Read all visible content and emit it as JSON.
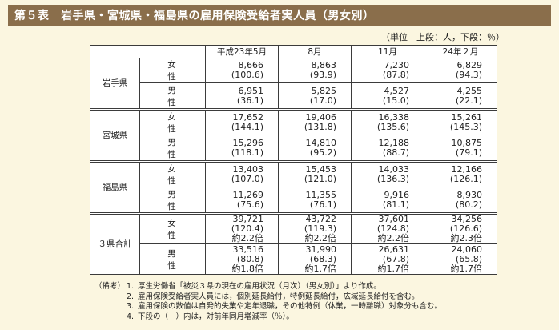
{
  "title": "第５表　岩手県・宮城県・福島県の雇用保険受給者実人員（男女別）",
  "unit_note": "（単位　上段：人，下段：％）",
  "columns": [
    "平成23年5月",
    "8月",
    "11月",
    "24年２月"
  ],
  "rows": [
    {
      "pref": "岩手県",
      "entries": [
        {
          "sex": "女　性",
          "cells": [
            [
              "8,666",
              "(100.6)"
            ],
            [
              "8,863",
              "(93.9)"
            ],
            [
              "7,230",
              "(87.8)"
            ],
            [
              "6,829",
              "(94.3)"
            ]
          ]
        },
        {
          "sex": "男　性",
          "cells": [
            [
              "6,951",
              "(36.1)"
            ],
            [
              "5,825",
              "(17.0)"
            ],
            [
              "4,527",
              "(15.0)"
            ],
            [
              "4,255",
              "(22.1)"
            ]
          ]
        }
      ]
    },
    {
      "pref": "宮城県",
      "entries": [
        {
          "sex": "女　性",
          "cells": [
            [
              "17,652",
              "(144.1)"
            ],
            [
              "19,406",
              "(131.8)"
            ],
            [
              "16,338",
              "(135.6)"
            ],
            [
              "15,261",
              "(145.3)"
            ]
          ]
        },
        {
          "sex": "男　性",
          "cells": [
            [
              "15,296",
              "(118.1)"
            ],
            [
              "14,810",
              "(95.2)"
            ],
            [
              "12,188",
              "(88.7)"
            ],
            [
              "10,875",
              "(79.1)"
            ]
          ]
        }
      ]
    },
    {
      "pref": "福島県",
      "entries": [
        {
          "sex": "女　性",
          "cells": [
            [
              "13,403",
              "(107.0)"
            ],
            [
              "15,453",
              "(121.0)"
            ],
            [
              "14,033",
              "(136.3)"
            ],
            [
              "12,166",
              "(126.1)"
            ]
          ]
        },
        {
          "sex": "男　性",
          "cells": [
            [
              "11,269",
              "(75.6)"
            ],
            [
              "11,355",
              "(76.1)"
            ],
            [
              "9,916",
              "(81.1)"
            ],
            [
              "8,930",
              "(80.2)"
            ]
          ]
        }
      ]
    },
    {
      "pref": "３県合計",
      "entries": [
        {
          "sex": "女　性",
          "cells": [
            [
              "39,721",
              "(120.4)",
              "約2.2倍"
            ],
            [
              "43,722",
              "(119.3)",
              "約2.2倍"
            ],
            [
              "37,601",
              "(124.8)",
              "約2.2倍"
            ],
            [
              "34,256",
              "(126.6)",
              "約2.3倍"
            ]
          ]
        },
        {
          "sex": "男　性",
          "cells": [
            [
              "33,516",
              "(80.8)",
              "約1.8倍"
            ],
            [
              "31,990",
              "(68.3)",
              "約1.7倍"
            ],
            [
              "26,631",
              "(67.8)",
              "約1.7倍"
            ],
            [
              "24,060",
              "(65.8)",
              "約1.7倍"
            ]
          ]
        }
      ]
    }
  ],
  "notes": {
    "lead": "（備考）",
    "items": [
      {
        "num": "1.",
        "text": "厚生労働省「被災３県の現在の雇用状況（月次）（男女別）」より作成。"
      },
      {
        "num": "2.",
        "text": "雇用保険受給者実人員には，個別延長給付，特例延長給付，広域延長給付を含む。"
      },
      {
        "num": "3.",
        "text": "雇用保険の数値は自発的失業や定年退職，その他特例（休業，一時離職）対象分も含む。"
      },
      {
        "num": "4.",
        "text": "下段の（　）内は，対前年同月増減率（％）。"
      }
    ]
  }
}
